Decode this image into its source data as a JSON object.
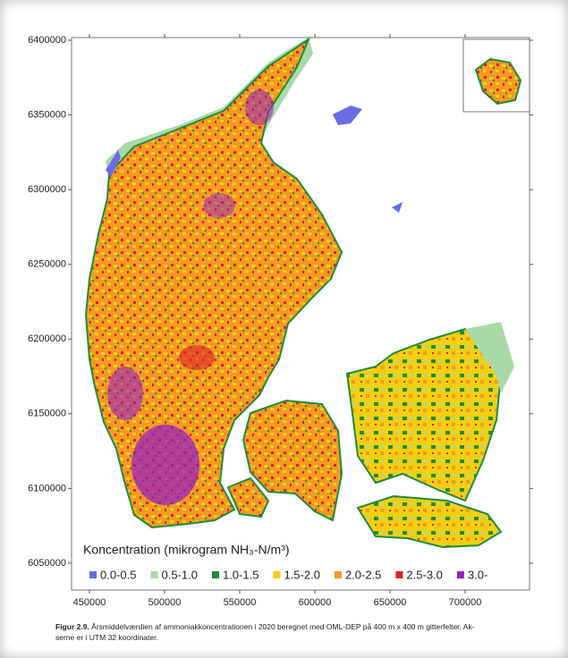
{
  "chart_data": {
    "type": "map",
    "xlim": [
      438100,
      742860
    ],
    "ylim": [
      6032000,
      6401800
    ],
    "xticks": [
      450000,
      500000,
      550000,
      600000,
      650000,
      700000
    ],
    "yticks": [
      6050000,
      6100000,
      6150000,
      6200000,
      6250000,
      6300000,
      6350000,
      6400000
    ],
    "legend": {
      "title": "Koncentration (mikrogram NH₃-N/m³)",
      "entries": [
        {
          "name": "0.0-0.5",
          "color": "#6b6be6"
        },
        {
          "name": "0.5-1.0",
          "color": "#a9d9a6"
        },
        {
          "name": "1.0-1.5",
          "color": "#1e8c3a"
        },
        {
          "name": "1.5-2.0",
          "color": "#f3cf10"
        },
        {
          "name": "2.0-2.5",
          "color": "#f29a22"
        },
        {
          "name": "2.5-3.0",
          "color": "#e0202a"
        },
        {
          "name": "3.0-",
          "color": "#9a1fbf"
        }
      ]
    }
  },
  "caption": {
    "label": "Figur 2.9.",
    "lines": [
      "Årsmiddelværdien af ammoniakkoncentrationen i 2020 beregnet med OML-DEP på 400 m x 400 m gitterfelter. Ak-",
      "serne er i UTM 32 koordinater."
    ]
  }
}
